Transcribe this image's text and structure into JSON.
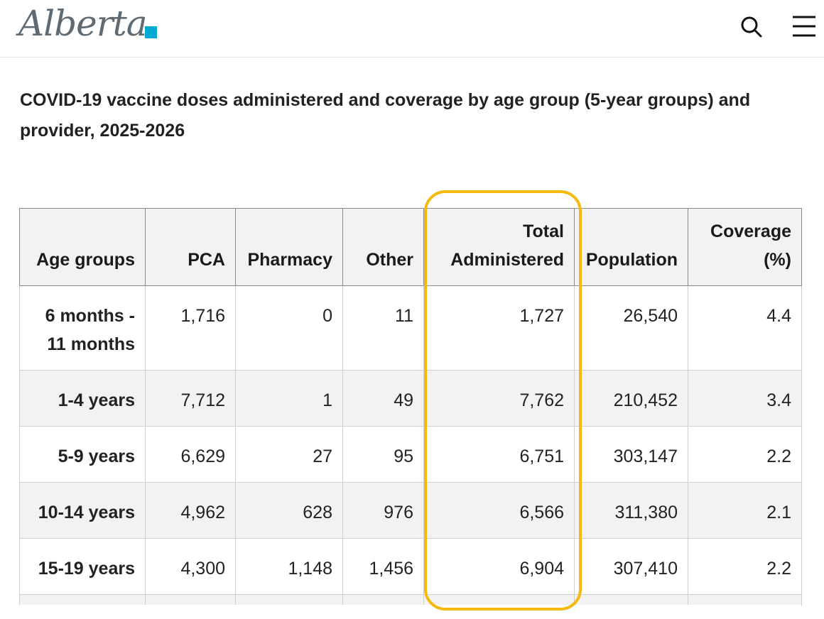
{
  "header": {
    "logo_text": "Alberta",
    "brand_color": "#00aad2",
    "search_icon": "search-icon",
    "menu_icon": "hamburger-menu-icon"
  },
  "title": "COVID-19 vaccine doses administered and coverage by age group (5-year groups) and provider, 2025-2026",
  "table": {
    "headers": [
      "Age groups",
      "PCA",
      "Pharmacy",
      "Other",
      "Total Administered",
      "Population",
      "Coverage (%)"
    ],
    "rows": [
      [
        "6 months - 11 months",
        "1,716",
        "0",
        "11",
        "1,727",
        "26,540",
        "4.4"
      ],
      [
        "1-4 years",
        "7,712",
        "1",
        "49",
        "7,762",
        "210,452",
        "3.4"
      ],
      [
        "5-9 years",
        "6,629",
        "27",
        "95",
        "6,751",
        "303,147",
        "2.2"
      ],
      [
        "10-14 years",
        "4,962",
        "628",
        "976",
        "6,566",
        "311,380",
        "2.1"
      ],
      [
        "15-19 years",
        "4,300",
        "1,148",
        "1,456",
        "6,904",
        "307,410",
        "2.2"
      ]
    ]
  },
  "highlight_color": "#f5b90f"
}
